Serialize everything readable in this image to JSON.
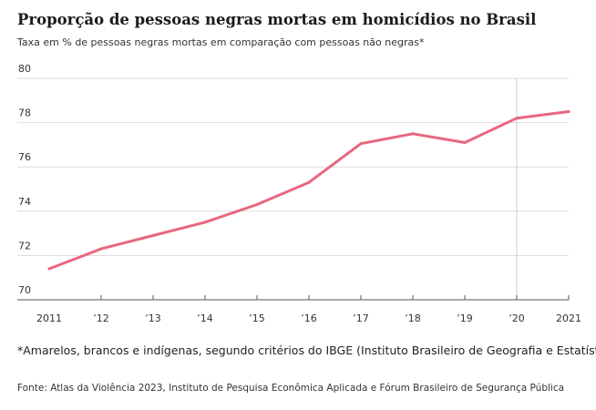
{
  "header": {
    "title": "Proporção de pessoas negras mortas em homicídios no Brasil",
    "subtitle": "Taxa em % de pessoas negras mortas em comparação com pessoas não negras*"
  },
  "footer": {
    "note": "*Amarelos, brancos e indígenas, segundo critérios do IBGE (Instituto Brasileiro de Geografia e Estatística)",
    "source": "Fonte: Atlas da Violência 2023, Instituto de Pesquisa Econômica Aplicada e Fórum Brasileiro de Segurança Pública"
  },
  "chart_data": {
    "type": "line",
    "x": [
      2011,
      2012,
      2013,
      2014,
      2015,
      2016,
      2017,
      2018,
      2019,
      2020,
      2021
    ],
    "x_tick_labels": [
      "2011",
      "’12",
      "’13",
      "’14",
      "’15",
      "’16",
      "’17",
      "’18",
      "’19",
      "’20",
      "2021"
    ],
    "series": [
      {
        "values": [
          71.4,
          72.3,
          72.9,
          73.5,
          74.3,
          75.3,
          77.05,
          77.5,
          77.1,
          78.2,
          78.5
        ],
        "color": "#e8677f"
      }
    ],
    "ylim": [
      70,
      80
    ],
    "y_ticks": [
      70,
      72,
      74,
      76,
      78,
      80
    ],
    "grid": true,
    "highlight_x": 2020,
    "colors": {
      "line": "#e8677f",
      "grid": "#dddddd",
      "axis": "#555555",
      "highlight": "#cccccc"
    }
  }
}
